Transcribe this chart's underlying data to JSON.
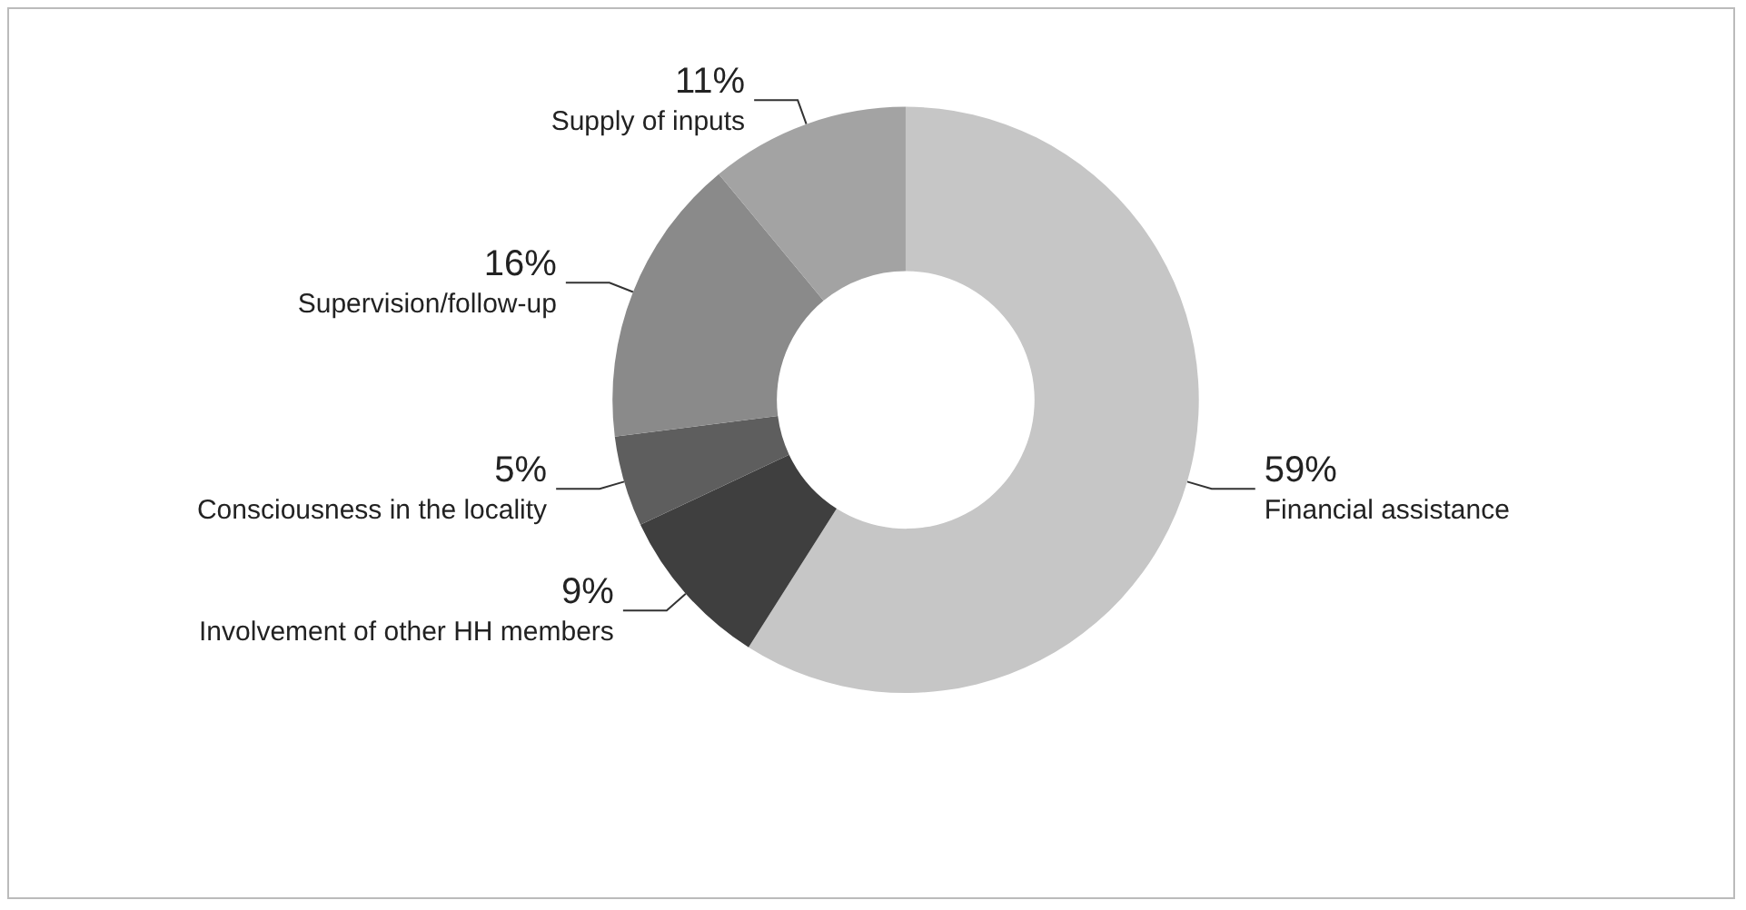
{
  "chart_data": {
    "type": "donut",
    "categories": [
      "Financial assistance",
      "Involvement of other HH members",
      "Consciousness in the locality",
      "Supervision/follow-up",
      "Supply of inputs"
    ],
    "values": [
      59,
      9,
      5,
      16,
      11
    ],
    "value_labels": [
      "59%",
      "9%",
      "5%",
      "16%",
      "11%"
    ],
    "colors": [
      "#c6c6c6",
      "#3f3f3f",
      "#5e5e5e",
      "#8a8a8a",
      "#a3a3a3"
    ],
    "legend": false
  }
}
